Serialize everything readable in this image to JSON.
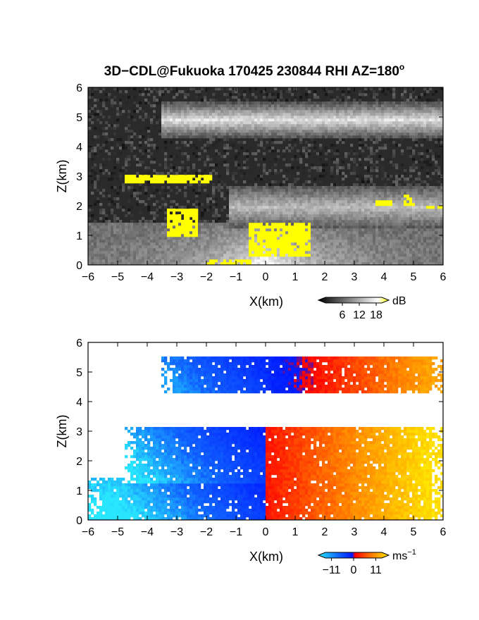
{
  "title": "3D−CDL@Fukuoka 170425 230844 RHI AZ=180",
  "title_superscript": "o",
  "chart_data": [
    {
      "type": "heatmap",
      "name": "backscatter-intensity",
      "xlabel": "X(km)",
      "ylabel": "Z(km)",
      "xlim": [
        -6,
        6
      ],
      "ylim": [
        0,
        6
      ],
      "xticks": [
        "−6",
        "−5",
        "−4",
        "−3",
        "−2",
        "−1",
        "0",
        "1",
        "2",
        "3",
        "4",
        "5",
        "6"
      ],
      "yticks": [
        "0",
        "1",
        "2",
        "3",
        "4",
        "5",
        "6"
      ],
      "colorbar": {
        "unit": "dB",
        "tick_labels": [
          "6",
          "12",
          "18"
        ],
        "min": 0,
        "max": 20,
        "tick_values": [
          6,
          12,
          18
        ]
      },
      "colors": {
        "background": "#2a2a2a",
        "echo": "#e6e6e6",
        "saturated": "#ffff00"
      },
      "layers": [
        {
          "x": [
            -3.5,
            6
          ],
          "z": [
            4.3,
            5.5
          ],
          "max_db": 16
        },
        {
          "x": [
            -1.2,
            6
          ],
          "z": [
            1.2,
            2.7
          ],
          "max_db": 12
        },
        {
          "x": [
            -6,
            6
          ],
          "z": [
            0,
            1.4
          ],
          "max_db": 18
        }
      ],
      "saturated_regions": [
        {
          "x": [
            -4.8,
            -1.8
          ],
          "z": [
            2.75,
            3.0
          ]
        },
        {
          "x": [
            3.7,
            4.3
          ],
          "z": [
            2.0,
            2.15
          ]
        },
        {
          "x": [
            4.7,
            5.0
          ],
          "z": [
            2.0,
            2.35
          ]
        },
        {
          "x": [
            5.4,
            6.0
          ],
          "z": [
            1.9,
            2.0
          ]
        },
        {
          "x": [
            -3.3,
            -2.3
          ],
          "z": [
            1.0,
            1.9
          ]
        },
        {
          "x": [
            -0.6,
            1.5
          ],
          "z": [
            0.3,
            1.4
          ]
        },
        {
          "x": [
            -2.0,
            -0.5
          ],
          "z": [
            0.0,
            0.2
          ]
        }
      ]
    },
    {
      "type": "heatmap",
      "name": "doppler-velocity",
      "xlabel": "X(km)",
      "ylabel": "Z(km)",
      "xlim": [
        -6,
        6
      ],
      "ylim": [
        0,
        6
      ],
      "xticks": [
        "−6",
        "−5",
        "−4",
        "−3",
        "−2",
        "−1",
        "0",
        "1",
        "2",
        "3",
        "4",
        "5",
        "6"
      ],
      "yticks": [
        "0",
        "1",
        "2",
        "3",
        "4",
        "5",
        "6"
      ],
      "colorbar": {
        "unit": "ms",
        "unit_exponent": "−1",
        "tick_labels": [
          "−11",
          "0",
          "11"
        ],
        "min": -14,
        "max": 14,
        "tick_values": [
          -11,
          0,
          11
        ]
      },
      "colors": {
        "negative_strong": "#0018ff",
        "negative_weak": "#29e6ff",
        "zero": "#ff0000",
        "positive_strong": "#ffe600"
      },
      "layers": [
        {
          "x": [
            -3.5,
            6
          ],
          "z": [
            4.3,
            5.5
          ]
        },
        {
          "x": [
            -4.8,
            6
          ],
          "z": [
            1.2,
            3.1
          ]
        },
        {
          "x": [
            -6,
            6
          ],
          "z": [
            0,
            1.4
          ]
        }
      ]
    }
  ]
}
